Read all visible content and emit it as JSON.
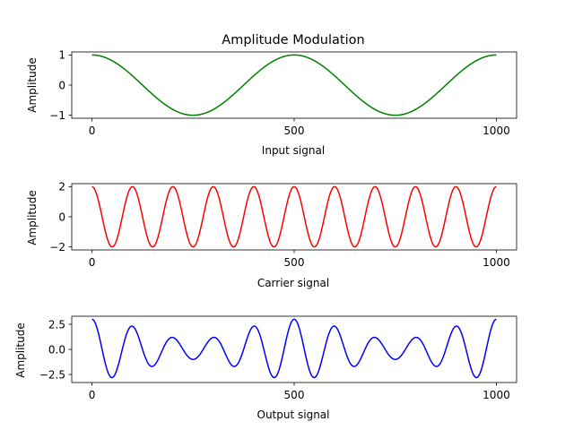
{
  "chart_data": [
    {
      "type": "line",
      "title": "Amplitude Modulation",
      "xlabel": "Input signal",
      "ylabel": "Amplitude",
      "xlim": [
        -50,
        1050
      ],
      "ylim": [
        -1.1,
        1.1
      ],
      "xticks": [
        0,
        500,
        1000
      ],
      "xtick_labels": [
        "0",
        "500",
        "1000"
      ],
      "yticks": [
        1,
        0,
        -1
      ],
      "ytick_labels": [
        "1",
        "0",
        "−1"
      ],
      "series": [
        {
          "color": "#008000",
          "formula": "cos(2*pi*x/500)",
          "x_range": [
            0,
            1000
          ],
          "samples": 1001
        }
      ],
      "grid": false
    },
    {
      "type": "line",
      "title": "",
      "xlabel": "Carrier signal",
      "ylabel": "Amplitude",
      "xlim": [
        -50,
        1050
      ],
      "ylim": [
        -2.2,
        2.2
      ],
      "xticks": [
        0,
        500,
        1000
      ],
      "xtick_labels": [
        "0",
        "500",
        "1000"
      ],
      "yticks": [
        2,
        0,
        -2
      ],
      "ytick_labels": [
        "2",
        "0",
        "−2"
      ],
      "series": [
        {
          "color": "#ff0000",
          "formula": "2*cos(2*pi*x/100)",
          "x_range": [
            0,
            1000
          ],
          "samples": 1001
        }
      ],
      "grid": false
    },
    {
      "type": "line",
      "title": "",
      "xlabel": "Output signal",
      "ylabel": "Amplitude",
      "xlim": [
        -50,
        1050
      ],
      "ylim": [
        -3.3,
        3.3
      ],
      "xticks": [
        0,
        500,
        1000
      ],
      "xtick_labels": [
        "0",
        "500",
        "1000"
      ],
      "yticks": [
        2.5,
        0.0,
        -2.5
      ],
      "ytick_labels": [
        "2.5",
        "0.0",
        "−2.5"
      ],
      "series": [
        {
          "color": "#0000ff",
          "formula": "2*cos(2*pi*x/100) + cos(2*pi*x/500)*cos(2*pi*x/100)",
          "x_range": [
            0,
            1000
          ],
          "samples": 1001
        }
      ],
      "grid": false
    }
  ]
}
